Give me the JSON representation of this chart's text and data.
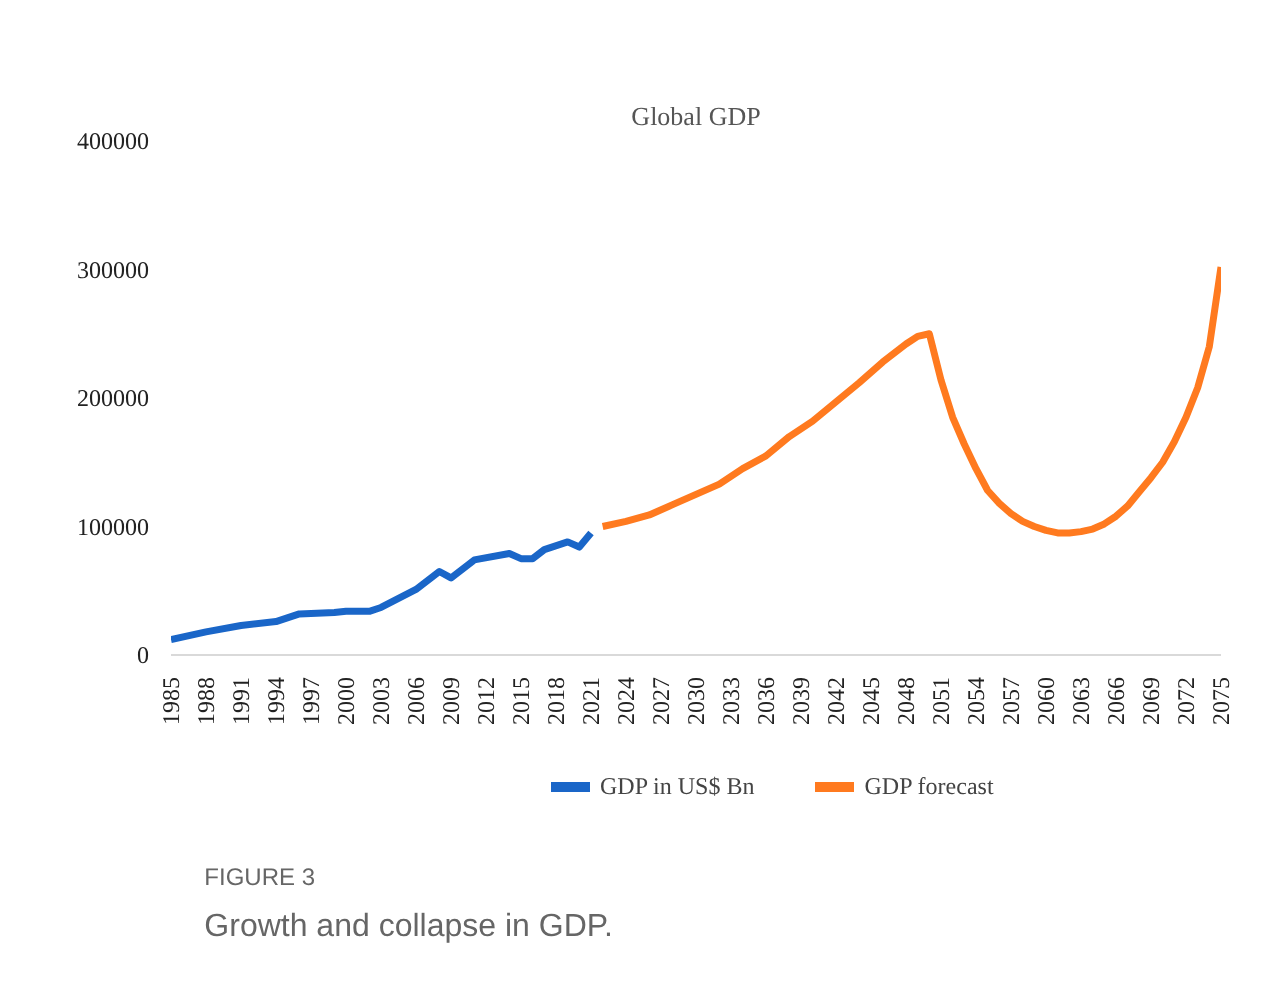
{
  "chart_data": {
    "type": "line",
    "title": "Global GDP",
    "xlim": [
      1985,
      2075
    ],
    "xticks": [
      1985,
      1988,
      1991,
      1994,
      1997,
      2000,
      2003,
      2006,
      2009,
      2012,
      2015,
      2018,
      2021,
      2024,
      2027,
      2030,
      2033,
      2036,
      2039,
      2042,
      2045,
      2048,
      2051,
      2054,
      2057,
      2060,
      2063,
      2066,
      2069,
      2072,
      2075
    ],
    "ylim": [
      0,
      400000
    ],
    "yticks": [
      0,
      100000,
      200000,
      300000,
      400000
    ],
    "grid": false,
    "legend": "bottom",
    "line_style": "solid",
    "annotations": [
      "FIGURE 3",
      "Growth and collapse in GDP."
    ],
    "series": [
      {
        "name": "GDP in US$ Bn",
        "color": "#1a66c8",
        "x": [
          1985,
          1988,
          1991,
          1994,
          1996,
          1999,
          2000,
          2002,
          2003,
          2006,
          2008,
          2009,
          2011,
          2014,
          2015,
          2016,
          2017,
          2019,
          2020,
          2021
        ],
        "values": [
          12000,
          18000,
          23000,
          26000,
          32000,
          33000,
          34000,
          34000,
          37000,
          51000,
          65000,
          60000,
          74000,
          79000,
          75000,
          75000,
          82000,
          88000,
          84000,
          95000
        ]
      },
      {
        "name": "GDP forecast",
        "color": "#ff7a1f",
        "x": [
          2022,
          2024,
          2026,
          2028,
          2030,
          2032,
          2034,
          2036,
          2038,
          2040,
          2042,
          2044,
          2046,
          2048,
          2049,
          2050,
          2051,
          2052,
          2053,
          2054,
          2055,
          2056,
          2057,
          2058,
          2059,
          2060,
          2061,
          2062,
          2063,
          2064,
          2065,
          2066,
          2067,
          2068,
          2069,
          2070,
          2071,
          2072,
          2073,
          2074,
          2075
        ],
        "values": [
          100000,
          104000,
          109000,
          117000,
          125000,
          133000,
          145000,
          155000,
          170000,
          182000,
          197000,
          212000,
          228000,
          242000,
          248000,
          250000,
          214000,
          185000,
          164000,
          145000,
          128000,
          118000,
          110000,
          104000,
          100000,
          97000,
          95000,
          95000,
          96000,
          98000,
          102000,
          108000,
          116000,
          127000,
          138000,
          150000,
          166000,
          185000,
          208000,
          240000,
          302000
        ]
      }
    ]
  }
}
